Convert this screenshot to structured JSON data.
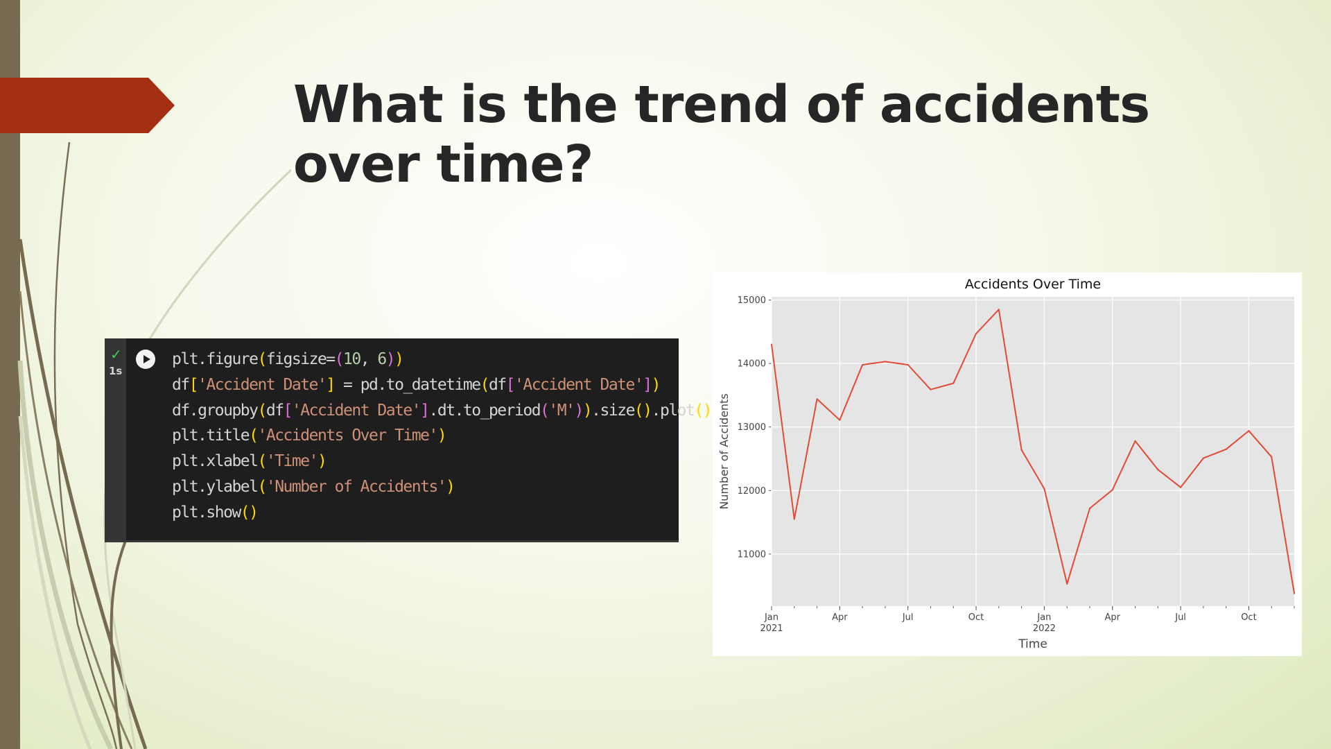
{
  "slide": {
    "title": "What is the trend of accidents over time?"
  },
  "code_cell": {
    "status_icon": "check-icon",
    "exec_time": "1s",
    "run_icon": "play-circle-icon",
    "lines": [
      [
        {
          "t": "plt",
          "c": "#d4d4d4"
        },
        {
          "t": ".",
          "c": "#d4d4d4"
        },
        {
          "t": "figure",
          "c": "#d4d4d4"
        },
        {
          "t": "(",
          "c": "#ffd700"
        },
        {
          "t": "figsize",
          "c": "#d4d4d4"
        },
        {
          "t": "=",
          "c": "#d4d4d4"
        },
        {
          "t": "(",
          "c": "#da70d6"
        },
        {
          "t": "10",
          "c": "#b5cea8"
        },
        {
          "t": ", ",
          "c": "#d4d4d4"
        },
        {
          "t": "6",
          "c": "#b5cea8"
        },
        {
          "t": ")",
          "c": "#da70d6"
        },
        {
          "t": ")",
          "c": "#ffd700"
        }
      ],
      [
        {
          "t": "df",
          "c": "#d4d4d4"
        },
        {
          "t": "[",
          "c": "#ffd700"
        },
        {
          "t": "'Accident Date'",
          "c": "#ce9178"
        },
        {
          "t": "]",
          "c": "#ffd700"
        },
        {
          "t": " = ",
          "c": "#d4d4d4"
        },
        {
          "t": "pd",
          "c": "#d4d4d4"
        },
        {
          "t": ".",
          "c": "#d4d4d4"
        },
        {
          "t": "to_datetime",
          "c": "#d4d4d4"
        },
        {
          "t": "(",
          "c": "#ffd700"
        },
        {
          "t": "df",
          "c": "#d4d4d4"
        },
        {
          "t": "[",
          "c": "#da70d6"
        },
        {
          "t": "'Accident Date'",
          "c": "#ce9178"
        },
        {
          "t": "]",
          "c": "#da70d6"
        },
        {
          "t": ")",
          "c": "#ffd700"
        }
      ],
      [
        {
          "t": "df",
          "c": "#d4d4d4"
        },
        {
          "t": ".",
          "c": "#d4d4d4"
        },
        {
          "t": "groupby",
          "c": "#d4d4d4"
        },
        {
          "t": "(",
          "c": "#ffd700"
        },
        {
          "t": "df",
          "c": "#d4d4d4"
        },
        {
          "t": "[",
          "c": "#da70d6"
        },
        {
          "t": "'Accident Date'",
          "c": "#ce9178"
        },
        {
          "t": "]",
          "c": "#da70d6"
        },
        {
          "t": ".",
          "c": "#d4d4d4"
        },
        {
          "t": "dt",
          "c": "#d4d4d4"
        },
        {
          "t": ".",
          "c": "#d4d4d4"
        },
        {
          "t": "to_period",
          "c": "#d4d4d4"
        },
        {
          "t": "(",
          "c": "#da70d6"
        },
        {
          "t": "'M'",
          "c": "#ce9178"
        },
        {
          "t": ")",
          "c": "#da70d6"
        },
        {
          "t": ")",
          "c": "#ffd700"
        },
        {
          "t": ".",
          "c": "#d4d4d4"
        },
        {
          "t": "size",
          "c": "#d4d4d4"
        },
        {
          "t": "()",
          "c": "#ffd700"
        },
        {
          "t": ".",
          "c": "#d4d4d4"
        },
        {
          "t": "plot",
          "c": "#d4d4d4"
        },
        {
          "t": "()",
          "c": "#ffd700"
        }
      ],
      [
        {
          "t": "plt",
          "c": "#d4d4d4"
        },
        {
          "t": ".",
          "c": "#d4d4d4"
        },
        {
          "t": "title",
          "c": "#d4d4d4"
        },
        {
          "t": "(",
          "c": "#ffd700"
        },
        {
          "t": "'Accidents Over Time'",
          "c": "#ce9178"
        },
        {
          "t": ")",
          "c": "#ffd700"
        }
      ],
      [
        {
          "t": "plt",
          "c": "#d4d4d4"
        },
        {
          "t": ".",
          "c": "#d4d4d4"
        },
        {
          "t": "xlabel",
          "c": "#d4d4d4"
        },
        {
          "t": "(",
          "c": "#ffd700"
        },
        {
          "t": "'Time'",
          "c": "#ce9178"
        },
        {
          "t": ")",
          "c": "#ffd700"
        }
      ],
      [
        {
          "t": "plt",
          "c": "#d4d4d4"
        },
        {
          "t": ".",
          "c": "#d4d4d4"
        },
        {
          "t": "ylabel",
          "c": "#d4d4d4"
        },
        {
          "t": "(",
          "c": "#ffd700"
        },
        {
          "t": "'Number of Accidents'",
          "c": "#ce9178"
        },
        {
          "t": ")",
          "c": "#ffd700"
        }
      ],
      [
        {
          "t": "plt",
          "c": "#d4d4d4"
        },
        {
          "t": ".",
          "c": "#d4d4d4"
        },
        {
          "t": "show",
          "c": "#d4d4d4"
        },
        {
          "t": "()",
          "c": "#ffd700"
        }
      ]
    ]
  },
  "chart_data": {
    "type": "line",
    "title": "Accidents Over Time",
    "xlabel": "Time",
    "ylabel": "Number of Accidents",
    "x": [
      "2021-01",
      "2021-02",
      "2021-03",
      "2021-04",
      "2021-05",
      "2021-06",
      "2021-07",
      "2021-08",
      "2021-09",
      "2021-10",
      "2021-11",
      "2021-12",
      "2022-01",
      "2022-02",
      "2022-03",
      "2022-04",
      "2022-05",
      "2022-06",
      "2022-07",
      "2022-08",
      "2022-09",
      "2022-10",
      "2022-11",
      "2022-12"
    ],
    "values": [
      14300,
      11550,
      13440,
      13110,
      13980,
      14030,
      13980,
      13590,
      13690,
      14470,
      14850,
      12640,
      12030,
      10530,
      11720,
      12010,
      12780,
      12330,
      12050,
      12510,
      12650,
      12940,
      12530,
      10380
    ],
    "ylim": [
      10180,
      15050
    ],
    "yticks": [
      "11000",
      "12000",
      "13000",
      "14000",
      "15000"
    ],
    "xticks": [
      {
        "index": 0,
        "label": "Jan",
        "sub": "2021"
      },
      {
        "index": 3,
        "label": "Apr",
        "sub": ""
      },
      {
        "index": 6,
        "label": "Jul",
        "sub": ""
      },
      {
        "index": 9,
        "label": "Oct",
        "sub": ""
      },
      {
        "index": 12,
        "label": "Jan",
        "sub": "2022"
      },
      {
        "index": 15,
        "label": "Apr",
        "sub": ""
      },
      {
        "index": 18,
        "label": "Jul",
        "sub": ""
      },
      {
        "index": 21,
        "label": "Oct",
        "sub": ""
      }
    ],
    "grid": true,
    "line_color": "#e24a33",
    "plot_background": "#e5e5e5"
  }
}
